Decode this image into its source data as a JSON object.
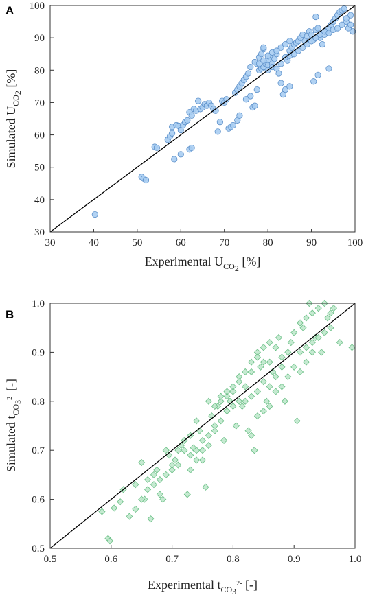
{
  "colors": {
    "circle_fill": "#a9cdf2",
    "circle_stroke": "#5b8fc9",
    "diamond_fill": "#bfe8cc",
    "diamond_stroke": "#6bbf86",
    "line": "#000000",
    "axis": "#333333"
  },
  "chart_data": [
    {
      "type": "scatter",
      "panel": "A",
      "marker": "circle",
      "xlabel": {
        "main": "Experimental U",
        "sub": "CO",
        "sub2": "2",
        "unit": " [%]"
      },
      "ylabel": {
        "main": "Simulated U",
        "sub": "CO",
        "sub2": "2",
        "unit": " [%]"
      },
      "xlim": [
        30,
        100
      ],
      "ylim": [
        30,
        100
      ],
      "xticks": [
        30,
        40,
        50,
        60,
        70,
        80,
        90,
        100
      ],
      "yticks": [
        30,
        40,
        50,
        60,
        70,
        80,
        90,
        100
      ],
      "parity_line": [
        [
          30,
          30
        ],
        [
          100,
          100
        ]
      ],
      "points": [
        [
          40.3,
          35.4
        ],
        [
          51,
          47
        ],
        [
          51.5,
          46.5
        ],
        [
          52,
          46
        ],
        [
          54,
          56.3
        ],
        [
          54.5,
          56
        ],
        [
          57,
          58.5
        ],
        [
          57.5,
          59.5
        ],
        [
          58,
          60.5
        ],
        [
          58,
          62.5
        ],
        [
          58.5,
          52.5
        ],
        [
          59,
          63
        ],
        [
          59.5,
          62.8
        ],
        [
          60,
          61.5
        ],
        [
          60,
          54
        ],
        [
          60.5,
          63
        ],
        [
          61,
          64
        ],
        [
          61.5,
          64.5
        ],
        [
          62,
          55.5
        ],
        [
          62.5,
          56
        ],
        [
          62,
          67
        ],
        [
          62.5,
          66
        ],
        [
          63,
          68
        ],
        [
          63.5,
          67.5
        ],
        [
          64,
          70.5
        ],
        [
          64.5,
          68
        ],
        [
          65,
          68.5
        ],
        [
          65.5,
          69.5
        ],
        [
          66,
          69
        ],
        [
          66.5,
          70
        ],
        [
          67,
          69
        ],
        [
          67.5,
          68
        ],
        [
          68,
          67.5
        ],
        [
          68.5,
          61
        ],
        [
          69,
          64
        ],
        [
          69.5,
          70.5
        ],
        [
          70,
          70
        ],
        [
          70.5,
          71
        ],
        [
          71,
          62
        ],
        [
          71.5,
          62.5
        ],
        [
          72,
          63
        ],
        [
          72.5,
          73
        ],
        [
          73,
          74
        ],
        [
          73.5,
          75
        ],
        [
          74,
          76
        ],
        [
          74.5,
          77
        ],
        [
          75,
          78
        ],
        [
          75.5,
          79
        ],
        [
          73,
          64.5
        ],
        [
          73.5,
          66
        ],
        [
          75,
          71
        ],
        [
          76,
          72
        ],
        [
          76.5,
          68.5
        ],
        [
          77,
          69
        ],
        [
          77.5,
          74
        ],
        [
          78,
          80
        ],
        [
          78.5,
          80.5
        ],
        [
          79,
          81
        ],
        [
          79.5,
          82
        ],
        [
          80,
          83
        ],
        [
          77.5,
          82
        ],
        [
          78,
          84
        ],
        [
          78.5,
          85
        ],
        [
          79,
          86.5
        ],
        [
          79,
          87
        ],
        [
          80,
          81.5
        ],
        [
          80.5,
          84
        ],
        [
          81,
          82
        ],
        [
          81.5,
          83.5
        ],
        [
          82,
          85
        ],
        [
          82.5,
          79
        ],
        [
          83,
          76
        ],
        [
          83.5,
          72.5
        ],
        [
          84,
          74
        ],
        [
          84.5,
          83
        ],
        [
          85,
          86
        ],
        [
          85.5,
          87
        ],
        [
          86,
          88
        ],
        [
          86.5,
          88.5
        ],
        [
          87,
          89
        ],
        [
          87.5,
          90
        ],
        [
          88,
          91
        ],
        [
          88.5,
          89
        ],
        [
          89,
          90.5
        ],
        [
          89.5,
          92
        ],
        [
          90,
          91
        ],
        [
          90.5,
          89.5
        ],
        [
          91,
          92.5
        ],
        [
          91.5,
          93
        ],
        [
          92,
          90
        ],
        [
          92.5,
          88
        ],
        [
          93,
          91
        ],
        [
          93.5,
          92
        ],
        [
          94,
          93
        ],
        [
          94.5,
          94
        ],
        [
          95,
          95
        ],
        [
          95.5,
          96
        ],
        [
          96,
          97
        ],
        [
          96.5,
          98
        ],
        [
          97,
          98.5
        ],
        [
          97.5,
          99
        ],
        [
          98,
          95
        ],
        [
          98.5,
          93
        ],
        [
          99,
          94
        ],
        [
          99.5,
          92
        ],
        [
          90.5,
          76.5
        ],
        [
          91,
          96.5
        ],
        [
          91.5,
          78.5
        ],
        [
          94,
          80.5
        ],
        [
          85,
          75
        ],
        [
          80,
          80
        ],
        [
          81,
          81
        ],
        [
          82,
          80.5
        ],
        [
          83,
          82
        ],
        [
          84,
          84
        ],
        [
          85,
          84.5
        ],
        [
          86,
          85
        ],
        [
          87,
          86
        ],
        [
          88,
          87
        ],
        [
          89,
          88
        ],
        [
          90,
          89
        ],
        [
          91,
          90
        ],
        [
          92,
          91
        ],
        [
          93,
          92
        ],
        [
          94,
          91.5
        ],
        [
          95,
          92.5
        ],
        [
          96,
          93
        ],
        [
          97,
          94
        ],
        [
          98,
          96
        ],
        [
          99,
          97
        ],
        [
          76,
          81
        ],
        [
          77,
          82.5
        ],
        [
          78,
          82
        ],
        [
          79,
          83
        ],
        [
          80,
          84.5
        ],
        [
          81,
          85.5
        ],
        [
          82,
          86
        ],
        [
          83,
          87
        ],
        [
          84,
          88
        ],
        [
          85,
          89
        ]
      ]
    },
    {
      "type": "scatter",
      "panel": "B",
      "marker": "diamond",
      "xlabel": {
        "main": "Experimental t",
        "sub": "CO",
        "sub2": "3",
        "sup": "2-",
        "unit": " [-]"
      },
      "ylabel": {
        "main": "Simulated t",
        "sub": "CO",
        "sub2": "3",
        "sup": "2-",
        "unit": " [-]"
      },
      "xlim": [
        0.5,
        1.0
      ],
      "ylim": [
        0.5,
        1.0
      ],
      "xticks": [
        0.5,
        0.6,
        0.7,
        0.8,
        0.9,
        1.0
      ],
      "yticks": [
        0.5,
        0.6,
        0.7,
        0.8,
        0.9,
        1.0
      ],
      "parity_line": [
        [
          0.5,
          0.5
        ],
        [
          1.0,
          1.0
        ]
      ],
      "points": [
        [
          0.585,
          0.575
        ],
        [
          0.595,
          0.52
        ],
        [
          0.598,
          0.515
        ],
        [
          0.605,
          0.582
        ],
        [
          0.615,
          0.595
        ],
        [
          0.62,
          0.62
        ],
        [
          0.63,
          0.565
        ],
        [
          0.64,
          0.63
        ],
        [
          0.65,
          0.675
        ],
        [
          0.655,
          0.6
        ],
        [
          0.66,
          0.64
        ],
        [
          0.665,
          0.56
        ],
        [
          0.67,
          0.65
        ],
        [
          0.675,
          0.66
        ],
        [
          0.68,
          0.61
        ],
        [
          0.685,
          0.6
        ],
        [
          0.69,
          0.7
        ],
        [
          0.695,
          0.69
        ],
        [
          0.7,
          0.66
        ],
        [
          0.705,
          0.68
        ],
        [
          0.71,
          0.7
        ],
        [
          0.715,
          0.71
        ],
        [
          0.72,
          0.72
        ],
        [
          0.725,
          0.61
        ],
        [
          0.73,
          0.73
        ],
        [
          0.735,
          0.705
        ],
        [
          0.74,
          0.76
        ],
        [
          0.745,
          0.74
        ],
        [
          0.75,
          0.68
        ],
        [
          0.755,
          0.625
        ],
        [
          0.76,
          0.8
        ],
        [
          0.765,
          0.77
        ],
        [
          0.77,
          0.75
        ],
        [
          0.775,
          0.79
        ],
        [
          0.78,
          0.8
        ],
        [
          0.785,
          0.72
        ],
        [
          0.79,
          0.81
        ],
        [
          0.795,
          0.8
        ],
        [
          0.8,
          0.82
        ],
        [
          0.805,
          0.75
        ],
        [
          0.81,
          0.85
        ],
        [
          0.815,
          0.79
        ],
        [
          0.82,
          0.83
        ],
        [
          0.825,
          0.74
        ],
        [
          0.83,
          0.86
        ],
        [
          0.835,
          0.7
        ],
        [
          0.84,
          0.9
        ],
        [
          0.845,
          0.87
        ],
        [
          0.85,
          0.88
        ],
        [
          0.855,
          0.8
        ],
        [
          0.86,
          0.83
        ],
        [
          0.865,
          0.86
        ],
        [
          0.87,
          0.91
        ],
        [
          0.875,
          0.93
        ],
        [
          0.88,
          0.89
        ],
        [
          0.885,
          0.8
        ],
        [
          0.89,
          0.85
        ],
        [
          0.895,
          0.92
        ],
        [
          0.9,
          0.94
        ],
        [
          0.905,
          0.76
        ],
        [
          0.91,
          0.96
        ],
        [
          0.915,
          0.95
        ],
        [
          0.92,
          0.97
        ],
        [
          0.925,
          1.0
        ],
        [
          0.93,
          0.98
        ],
        [
          0.935,
          0.93
        ],
        [
          0.94,
          0.99
        ],
        [
          0.945,
          0.9
        ],
        [
          0.95,
          1.0
        ],
        [
          0.955,
          0.97
        ],
        [
          0.96,
          0.98
        ],
        [
          0.965,
          0.99
        ],
        [
          0.975,
          0.92
        ],
        [
          0.995,
          0.91
        ],
        [
          0.89,
          0.9
        ],
        [
          0.88,
          0.87
        ],
        [
          0.87,
          0.85
        ],
        [
          0.86,
          0.88
        ],
        [
          0.85,
          0.84
        ],
        [
          0.84,
          0.82
        ],
        [
          0.83,
          0.81
        ],
        [
          0.82,
          0.8
        ],
        [
          0.81,
          0.8
        ],
        [
          0.8,
          0.79
        ],
        [
          0.79,
          0.78
        ],
        [
          0.78,
          0.76
        ],
        [
          0.77,
          0.74
        ],
        [
          0.76,
          0.73
        ],
        [
          0.75,
          0.72
        ],
        [
          0.74,
          0.7
        ],
        [
          0.73,
          0.69
        ],
        [
          0.72,
          0.7
        ],
        [
          0.71,
          0.67
        ],
        [
          0.7,
          0.67
        ],
        [
          0.69,
          0.65
        ],
        [
          0.68,
          0.64
        ],
        [
          0.67,
          0.63
        ],
        [
          0.66,
          0.62
        ],
        [
          0.65,
          0.6
        ],
        [
          0.64,
          0.58
        ],
        [
          0.9,
          0.87
        ],
        [
          0.91,
          0.9
        ],
        [
          0.92,
          0.91
        ],
        [
          0.93,
          0.92
        ],
        [
          0.94,
          0.93
        ],
        [
          0.95,
          0.94
        ],
        [
          0.96,
          0.95
        ],
        [
          0.93,
          0.9
        ],
        [
          0.92,
          0.88
        ],
        [
          0.91,
          0.86
        ],
        [
          0.86,
          0.92
        ],
        [
          0.85,
          0.91
        ],
        [
          0.84,
          0.89
        ],
        [
          0.83,
          0.88
        ],
        [
          0.82,
          0.86
        ],
        [
          0.81,
          0.84
        ],
        [
          0.8,
          0.83
        ],
        [
          0.79,
          0.82
        ],
        [
          0.78,
          0.81
        ],
        [
          0.77,
          0.79
        ],
        [
          0.83,
          0.73
        ],
        [
          0.84,
          0.77
        ],
        [
          0.85,
          0.78
        ],
        [
          0.86,
          0.79
        ],
        [
          0.87,
          0.82
        ],
        [
          0.88,
          0.83
        ],
        [
          0.76,
          0.71
        ],
        [
          0.75,
          0.7
        ],
        [
          0.74,
          0.68
        ],
        [
          0.73,
          0.66
        ]
      ]
    }
  ]
}
